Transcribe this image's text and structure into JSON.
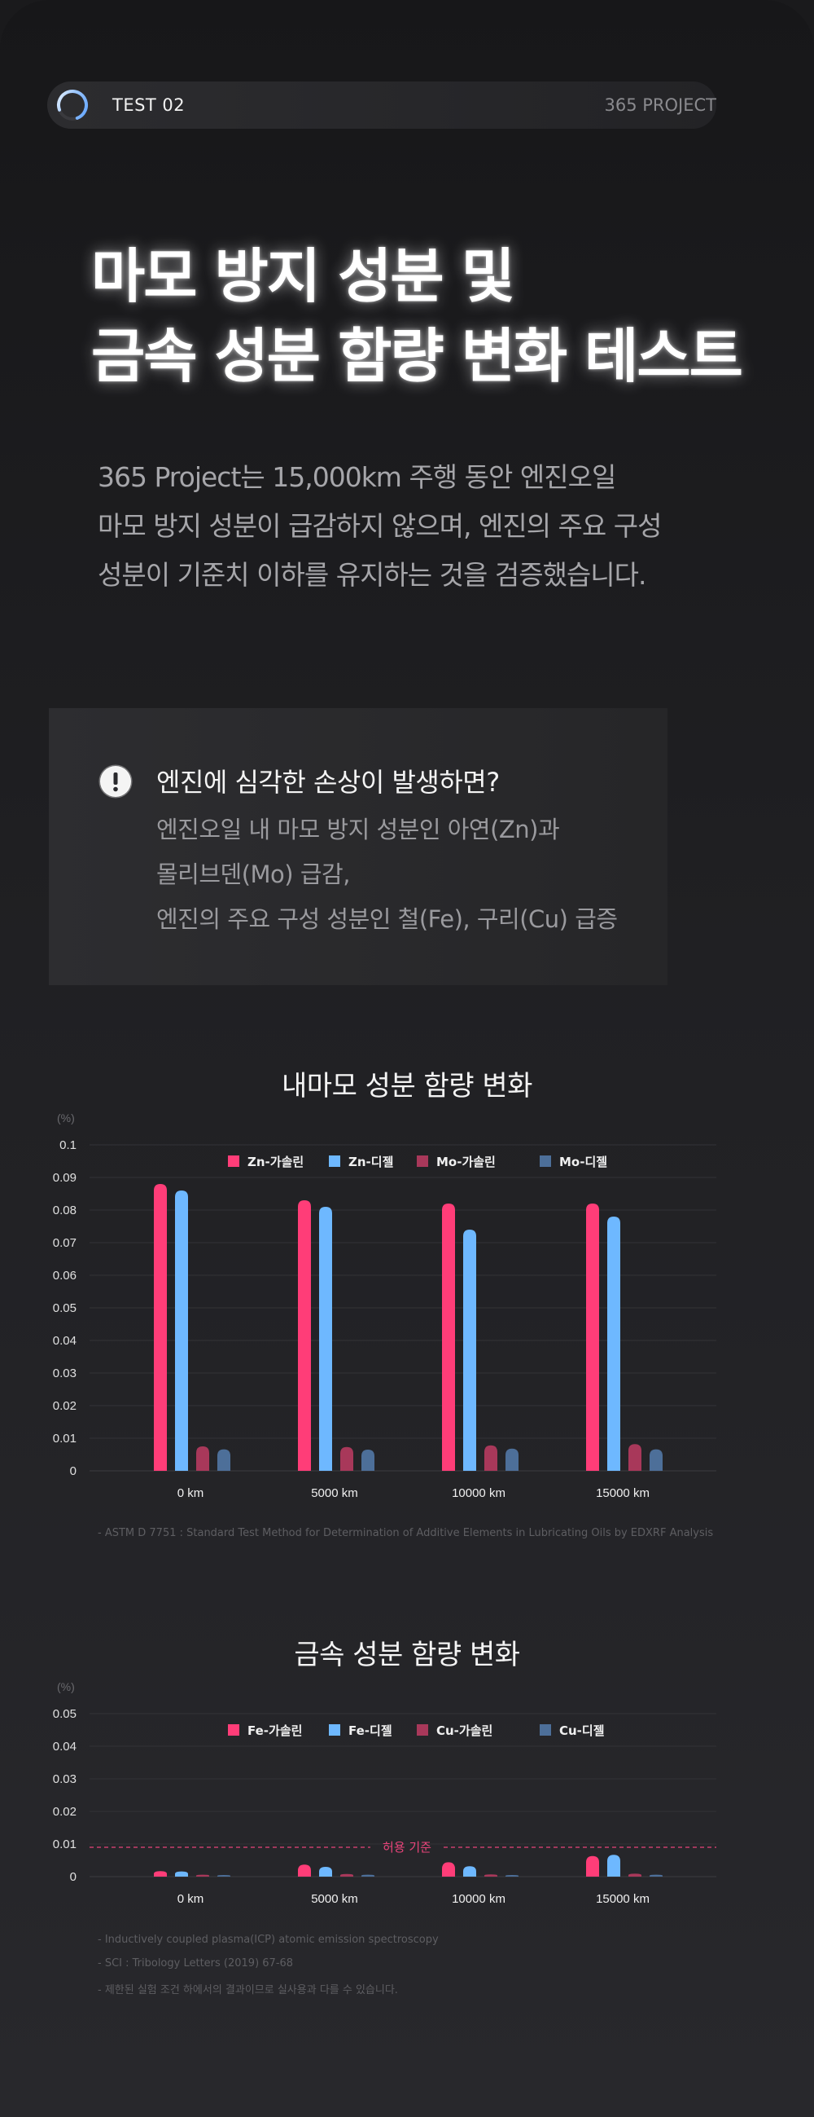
{
  "header": {
    "tag": "TEST 02",
    "project": "365 PROJECT"
  },
  "title": {
    "line1": "마모 방지 성분 및",
    "line2": "금속 성분 함량 변화 테스트"
  },
  "description": {
    "line1": "365 Project는 15,000km 주행 동안 엔진오일",
    "line2": "마모 방지 성분이 급감하지 않으며, 엔진의 주요 구성",
    "line3": "성분이 기준치 이하를 유지하는 것을 검증했습니다."
  },
  "warning": {
    "icon": "exclamation-circle-icon",
    "heading": "엔진에 심각한 손상이 발생하면?",
    "line1": "엔진오일 내 마모 방지 성분인 아연(Zn)과",
    "line2": "몰리브덴(Mo) 급감,",
    "line3": "엔진의 주요 구성 성분인 철(Fe), 구리(Cu) 급증"
  },
  "chart_data": [
    {
      "type": "bar",
      "title": "내마모 성분 함량 변화",
      "unit": "(%)",
      "categories": [
        "0 km",
        "5000 km",
        "10000 km",
        "15000 km"
      ],
      "ylim": [
        0,
        0.1
      ],
      "yticks": [
        "0.1",
        "0.09",
        "0.08",
        "0.07",
        "0.06",
        "0.05",
        "0.04",
        "0.03",
        "0.02",
        "0.01",
        "0"
      ],
      "ytick_values": [
        0.1,
        0.09,
        0.08,
        0.07,
        0.06,
        0.05,
        0.04,
        0.03,
        0.02,
        0.01,
        0
      ],
      "grid": true,
      "legend": "top-center",
      "series": [
        {
          "name": "Zn-가솔린",
          "color": "#ff3d78",
          "values": [
            0.088,
            0.083,
            0.082,
            0.082
          ]
        },
        {
          "name": "Zn-디젤",
          "color": "#6eb8ff",
          "values": [
            0.086,
            0.081,
            0.074,
            0.078
          ]
        },
        {
          "name": "Mo-가솔린",
          "color": "#a8385a",
          "values": [
            0.0075,
            0.0073,
            0.0078,
            0.0082
          ]
        },
        {
          "name": "Mo-디젤",
          "color": "#4d6f99",
          "values": [
            0.0066,
            0.0065,
            0.0068,
            0.0066
          ]
        }
      ],
      "notes": [
        "- ASTM D 7751 : Standard Test Method for Determination of Additive Elements in Lubricating Oils by EDXRF Analysis"
      ]
    },
    {
      "type": "bar",
      "title": "금속 성분 함량 변화",
      "unit": "(%)",
      "categories": [
        "0 km",
        "5000 km",
        "10000 km",
        "15000 km"
      ],
      "ylim": [
        0,
        0.05
      ],
      "yticks": [
        "0.05",
        "0.04",
        "0.03",
        "0.02",
        "0.01",
        "0"
      ],
      "ytick_values": [
        0.05,
        0.04,
        0.03,
        0.02,
        0.01,
        0
      ],
      "grid": true,
      "legend": "top-center",
      "threshold": {
        "value": 0.009,
        "label": "허용 기준",
        "color": "#e8447a"
      },
      "series": [
        {
          "name": "Fe-가솔린",
          "color": "#ff3d78",
          "values": [
            0.0017,
            0.0037,
            0.0044,
            0.0063
          ]
        },
        {
          "name": "Fe-디젤",
          "color": "#6eb8ff",
          "values": [
            0.0016,
            0.003,
            0.0032,
            0.0067
          ]
        },
        {
          "name": "Cu-가솔린",
          "color": "#a8385a",
          "values": [
            0.0006,
            0.0008,
            0.0007,
            0.0009
          ]
        },
        {
          "name": "Cu-디젤",
          "color": "#4d6f99",
          "values": [
            0.0005,
            0.0006,
            0.0005,
            0.0006
          ]
        }
      ],
      "notes": [
        "- Inductively coupled plasma(ICP) atomic emission spectroscopy",
        "- SCI : Tribology Letters (2019) 67-68",
        "- 제한된 실험 조건 하에서의 결과이므로 실사용과 다를 수 있습니다."
      ]
    }
  ]
}
